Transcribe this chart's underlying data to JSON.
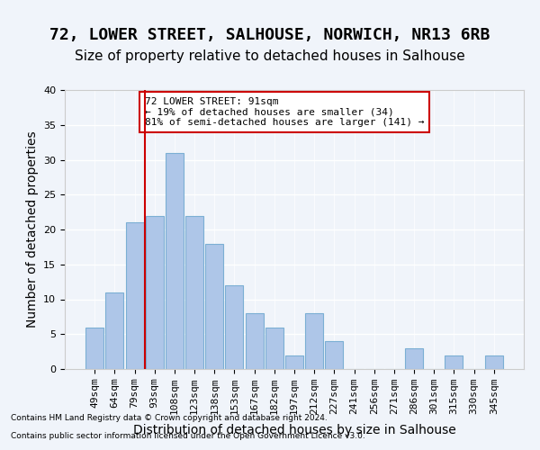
{
  "title": "72, LOWER STREET, SALHOUSE, NORWICH, NR13 6RB",
  "subtitle": "Size of property relative to detached houses in Salhouse",
  "xlabel": "Distribution of detached houses by size in Salhouse",
  "ylabel": "Number of detached properties",
  "categories": [
    "49sqm",
    "64sqm",
    "79sqm",
    "93sqm",
    "108sqm",
    "123sqm",
    "138sqm",
    "153sqm",
    "167sqm",
    "182sqm",
    "197sqm",
    "212sqm",
    "227sqm",
    "241sqm",
    "256sqm",
    "271sqm",
    "286sqm",
    "301sqm",
    "315sqm",
    "330sqm",
    "345sqm"
  ],
  "values": [
    6,
    11,
    21,
    22,
    31,
    22,
    18,
    12,
    8,
    6,
    2,
    8,
    4,
    0,
    0,
    0,
    3,
    0,
    2,
    0,
    2
  ],
  "bar_color": "#aec6e8",
  "bar_edge_color": "#7bafd4",
  "background_color": "#f0f4fa",
  "grid_color": "#ffffff",
  "vline_x": 3,
  "vline_color": "#cc0000",
  "annotation_text": "72 LOWER STREET: 91sqm\n← 19% of detached houses are smaller (34)\n81% of semi-detached houses are larger (141) →",
  "annotation_box_color": "#ffffff",
  "annotation_box_edge_color": "#cc0000",
  "ylim": [
    0,
    40
  ],
  "yticks": [
    0,
    5,
    10,
    15,
    20,
    25,
    30,
    35,
    40
  ],
  "footer1": "Contains HM Land Registry data © Crown copyright and database right 2024.",
  "footer2": "Contains public sector information licensed under the Open Government Licence v3.0.",
  "title_fontsize": 13,
  "subtitle_fontsize": 11,
  "tick_fontsize": 8,
  "ylabel_fontsize": 10,
  "xlabel_fontsize": 10
}
